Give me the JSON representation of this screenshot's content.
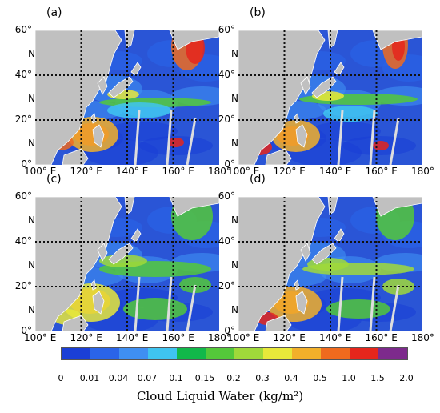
{
  "panels": [
    {
      "label": "(a)"
    },
    {
      "label": "(b)"
    },
    {
      "label": "(c)"
    },
    {
      "label": "(d)"
    }
  ],
  "lat_labels": [
    {
      "deg": "60°",
      "dir": "N"
    },
    {
      "deg": "40°",
      "dir": "N"
    },
    {
      "deg": "20°",
      "dir": "N"
    },
    {
      "deg": "0°",
      "dir": ""
    }
  ],
  "lon_labels": [
    "100° E",
    "120° E",
    "140° E",
    "160° E",
    "180°"
  ],
  "colorbar": {
    "ticks": [
      "0",
      "0.01",
      "0.04",
      "0.07",
      "0.1",
      "0.15",
      "0.2",
      "0.3",
      "0.4",
      "0.5",
      "1.0",
      "1.5",
      "2.0"
    ],
    "colors": [
      "#1b3fd6",
      "#2a64e8",
      "#3f8ff2",
      "#3fc4f0",
      "#11b84a",
      "#54c83a",
      "#a0d93a",
      "#e8e83a",
      "#f2b02a",
      "#ef6a1e",
      "#e5261c",
      "#7d2a8c"
    ],
    "title": "Cloud Liquid Water (kg/m²)"
  },
  "land_color": "#c0c0c0",
  "ocean_color": "#2a55d6"
}
